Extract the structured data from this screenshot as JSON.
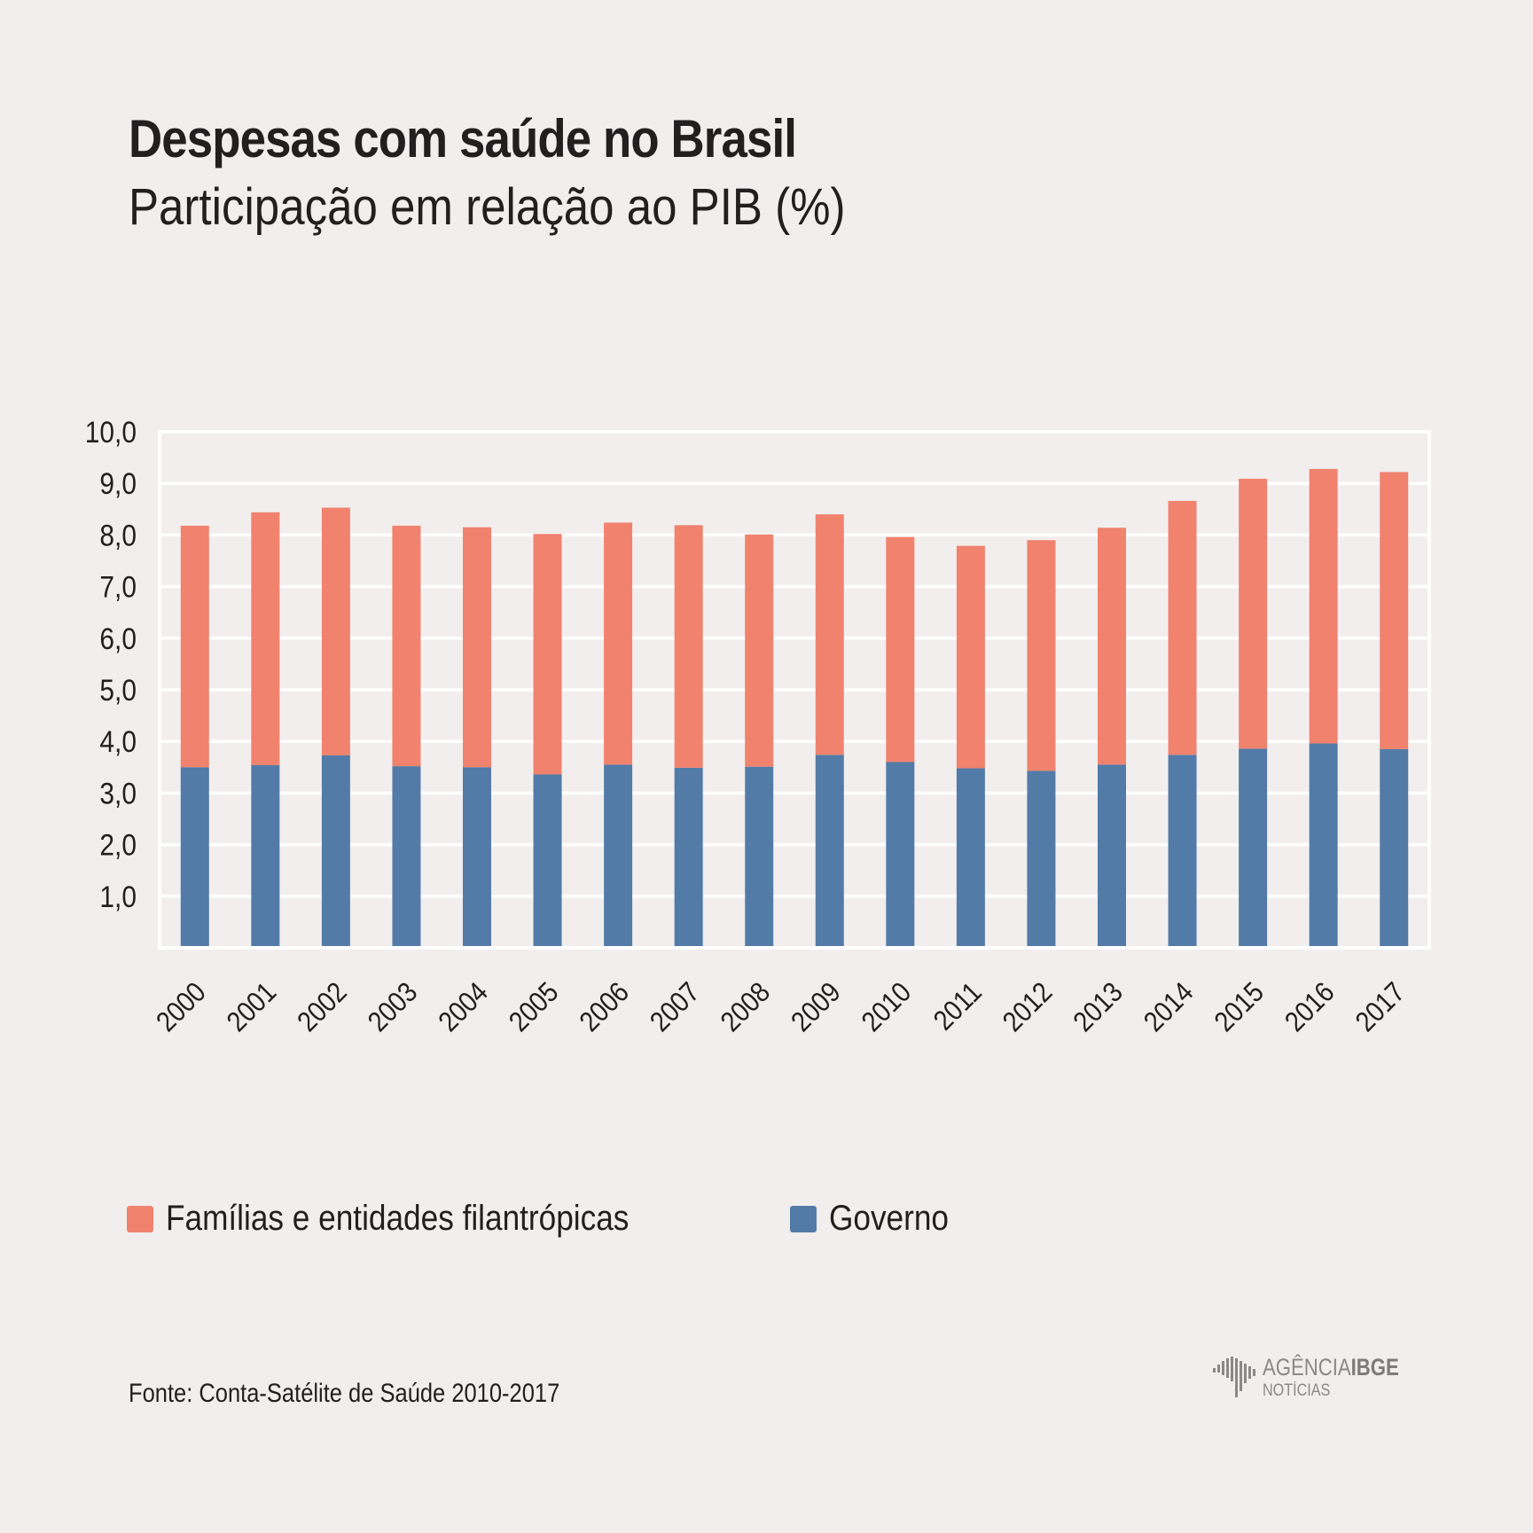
{
  "header": {
    "title": "Despesas com saúde no Brasil",
    "subtitle": "Participação em relação ao PIB (%)"
  },
  "chart_data": {
    "type": "bar",
    "stacked": true,
    "categories": [
      "2000",
      "2001",
      "2002",
      "2003",
      "2004",
      "2005",
      "2006",
      "2007",
      "2008",
      "2009",
      "2010",
      "2011",
      "2012",
      "2013",
      "2014",
      "2015",
      "2016",
      "2017"
    ],
    "series": [
      {
        "name": "Governo",
        "color": "#527ba8",
        "values": [
          3.5,
          3.54,
          3.73,
          3.52,
          3.5,
          3.36,
          3.55,
          3.49,
          3.51,
          3.74,
          3.6,
          3.48,
          3.43,
          3.55,
          3.74,
          3.86,
          3.96,
          3.85
        ]
      },
      {
        "name": "Famílias e entidades filantrópicas",
        "color": "#f0826e",
        "values": [
          4.68,
          4.9,
          4.8,
          4.66,
          4.65,
          4.66,
          4.69,
          4.7,
          4.5,
          4.66,
          4.36,
          4.31,
          4.47,
          4.59,
          4.92,
          5.23,
          5.32,
          5.37
        ]
      }
    ],
    "ylim": [
      0,
      10
    ],
    "yticks": [
      "1,0",
      "2,0",
      "3,0",
      "4,0",
      "5,0",
      "6,0",
      "7,0",
      "8,0",
      "9,0",
      "10,0"
    ],
    "grid": true,
    "legend_position": "bottom-left"
  },
  "legend": {
    "items": [
      {
        "label": "Famílias e entidades filantrópicas",
        "color": "#f0826e"
      },
      {
        "label": "Governo",
        "color": "#527ba8"
      }
    ]
  },
  "footer": {
    "source": "Fonte: Conta-Satélite de Saúde 2010-2017",
    "logo_line1_a": "AGÊNCIA",
    "logo_line1_b": "IBGE",
    "logo_line2": "NOTÍCIAS"
  }
}
